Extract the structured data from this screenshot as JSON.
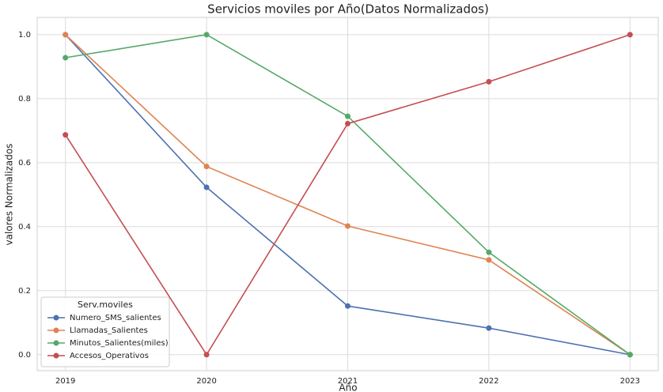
{
  "chart_data": {
    "type": "line",
    "title": "Servicios moviles por Año(Datos Normalizados)",
    "x_label": "Año",
    "y_label": "valores Normalizados",
    "x": [
      2019,
      2020,
      2021,
      2022,
      2023
    ],
    "series": [
      {
        "name": "Numero_SMS_salientes",
        "color": "#4c72b0",
        "values": [
          1.0,
          0.523,
          0.152,
          0.083,
          0.0
        ]
      },
      {
        "name": "Llamadas_Salientes",
        "color": "#dd8452",
        "values": [
          1.0,
          0.588,
          0.402,
          0.296,
          0.0
        ]
      },
      {
        "name": "Minutos_Salientes(miles)",
        "color": "#55a868",
        "values": [
          0.928,
          1.0,
          0.745,
          0.32,
          0.0
        ]
      },
      {
        "name": "Accesos_Operativos",
        "color": "#c44e52",
        "values": [
          0.687,
          0.0,
          0.722,
          0.853,
          1.0
        ]
      }
    ],
    "xlim": [
      2018.8,
      2023.2
    ],
    "xticks": [
      2019,
      2020,
      2021,
      2022,
      2023
    ],
    "ylim": [
      -0.05,
      1.054
    ],
    "yticks": [
      {
        "value": 0,
        "label": "0.0"
      },
      0.2,
      0.4,
      0.6,
      0.8,
      {
        "value": 1,
        "label": "1.0"
      }
    ],
    "grid": true,
    "legend_title": "Serv.moviles",
    "legend_position": "lower left"
  }
}
